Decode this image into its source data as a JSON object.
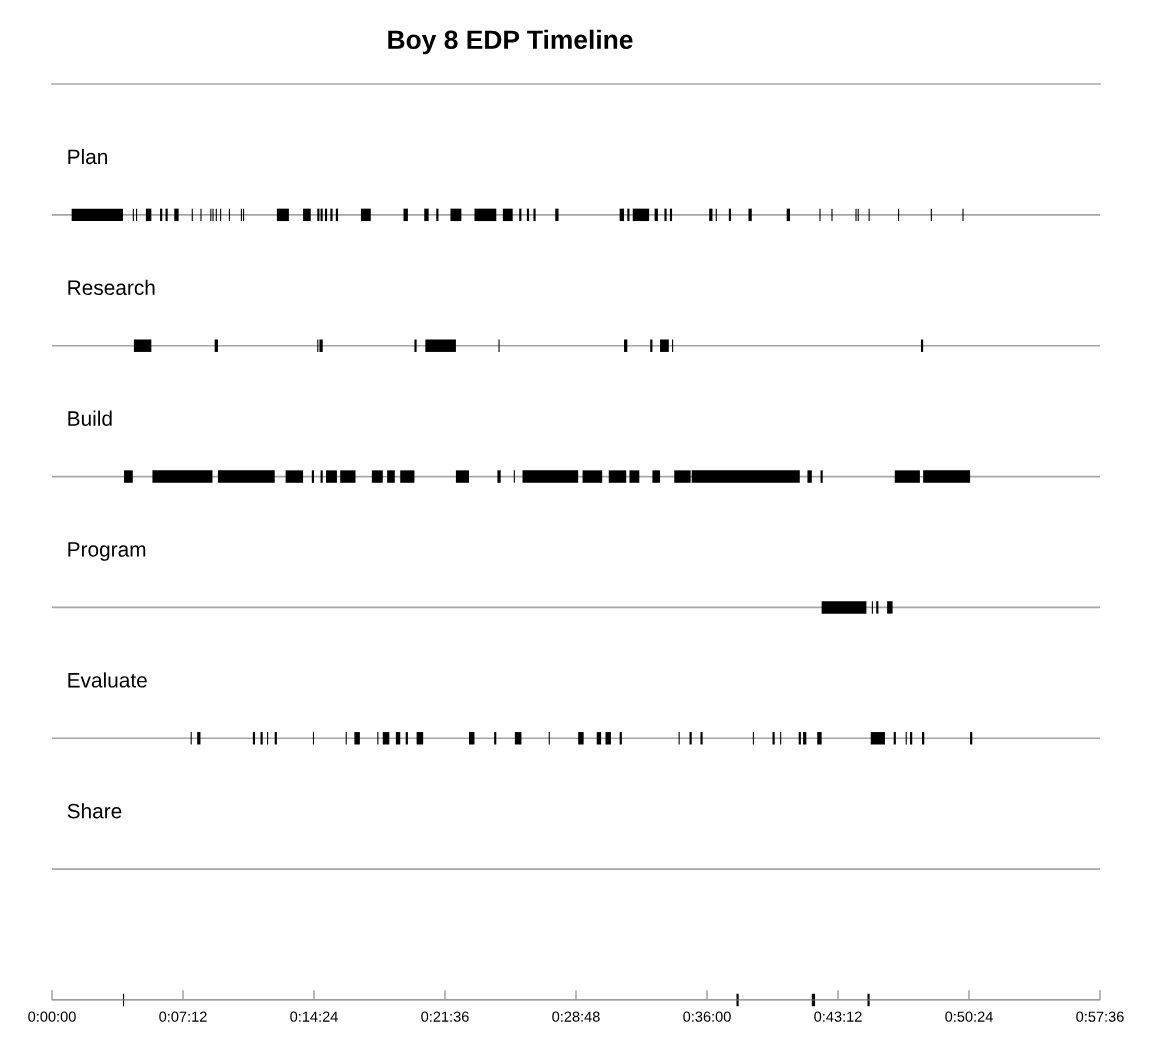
{
  "chart_data": {
    "type": "bar",
    "orientation": "horizontal",
    "title": "Boy 8 EDP Timeline",
    "categories": [
      "Plan",
      "Research",
      "Build",
      "Program",
      "Evaluate",
      "Share",
      null
    ],
    "series": [
      {
        "color": "#000000",
        "base": [
          0.018,
          0.075,
          0.066,
          0.705,
          0.127,
          null,
          0.065
        ],
        "values": [
          0.047,
          0.016,
          0.008,
          0.041,
          0.001,
          null,
          0.001
        ]
      },
      {
        "color": "#000000",
        "base": [
          0.074,
          0.149,
          0.092,
          0.751,
          0.133,
          null,
          0.627
        ],
        "values": [
          0.001,
          0.003,
          0.055,
          0.001,
          0.003,
          null,
          0.002
        ]
      },
      {
        "color": "#000000",
        "base": [
          0.077,
          0.243,
          0.152,
          0.755,
          0.184,
          null,
          0.696
        ],
        "values": [
          0.001,
          0.001,
          0.052,
          0.002,
          0.002,
          null,
          0.003
        ]
      },
      {
        "color": "#000000",
        "base": [
          0.086,
          0.245,
          0.214,
          0.765,
          0.191,
          null,
          0.747
        ],
        "values": [
          0.005,
          0.003,
          0.016,
          0.005,
          0.002,
          null,
          0.002
        ]
      },
      {
        "color": "#000000",
        "base": [
          0.099,
          0.332,
          0.238,
          null,
          0.197,
          null,
          null
        ],
        "values": [
          0.002,
          0.002,
          0.002,
          null,
          0.001,
          null,
          null
        ]
      },
      {
        "color": "#000000",
        "base": [
          0.104,
          0.342,
          0.246,
          null,
          0.204,
          null,
          null
        ],
        "values": [
          0.002,
          0.028,
          0.002,
          null,
          0.002,
          null,
          null
        ]
      },
      {
        "color": "#000000",
        "base": [
          0.112,
          0.409,
          0.251,
          null,
          0.239,
          null,
          null
        ],
        "values": [
          0.004,
          0.001,
          0.01,
          null,
          0.001,
          null,
          null
        ]
      },
      {
        "color": "#000000",
        "base": [
          0.128,
          0.524,
          0.264,
          null,
          0.269,
          null,
          null
        ],
        "values": [
          0.001,
          0.003,
          0.014,
          null,
          0.001,
          null,
          null
        ]
      },
      {
        "color": "#000000",
        "base": [
          0.136,
          0.548,
          0.293,
          null,
          0.277,
          null,
          null
        ],
        "values": [
          0.001,
          0.002,
          0.01,
          null,
          0.005,
          null,
          null
        ]
      },
      {
        "color": "#000000",
        "base": [
          0.145,
          0.557,
          0.307,
          null,
          0.298,
          null,
          null
        ],
        "values": [
          0.001,
          0.008,
          0.007,
          null,
          0.001,
          null,
          null
        ]
      },
      {
        "color": "#000000",
        "base": [
          0.147,
          0.568,
          0.319,
          null,
          0.303,
          null,
          null
        ],
        "values": [
          0.001,
          0.001,
          0.013,
          null,
          0.006,
          null,
          null
        ]
      },
      {
        "color": "#000000",
        "base": [
          0.15,
          0.796,
          0.37,
          null,
          0.315,
          null,
          null
        ],
        "values": [
          0.001,
          0.002,
          0.012,
          null,
          0.004,
          null,
          null
        ]
      },
      {
        "color": "#000000",
        "base": [
          0.154,
          null,
          0.408,
          null,
          0.324,
          null,
          null
        ],
        "values": [
          0.001,
          null,
          0.003,
          null,
          0.002,
          null,
          null
        ]
      },
      {
        "color": "#000000",
        "base": [
          0.162,
          null,
          0.423,
          null,
          0.334,
          null,
          null
        ],
        "values": [
          0.001,
          null,
          0.001,
          null,
          0.006,
          null,
          null
        ]
      },
      {
        "color": "#000000",
        "base": [
          0.173,
          null,
          0.431,
          null,
          0.382,
          null,
          null
        ],
        "values": [
          0.001,
          null,
          0.051,
          null,
          0.005,
          null,
          null
        ]
      },
      {
        "color": "#000000",
        "base": [
          0.175,
          null,
          0.486,
          null,
          0.405,
          null,
          null
        ],
        "values": [
          0.001,
          null,
          0.018,
          null,
          0.002,
          null,
          null
        ]
      },
      {
        "color": "#000000",
        "base": [
          0.206,
          null,
          0.51,
          null,
          0.424,
          null,
          null
        ],
        "values": [
          0.011,
          null,
          0.016,
          null,
          0.006,
          null,
          null
        ]
      },
      {
        "color": "#000000",
        "base": [
          0.23,
          null,
          0.529,
          null,
          0.455,
          null,
          null
        ],
        "values": [
          0.007,
          null,
          0.009,
          null,
          0.001,
          null,
          null
        ]
      },
      {
        "color": "#000000",
        "base": [
          0.243,
          null,
          0.55,
          null,
          0.482,
          null,
          null
        ],
        "values": [
          0.002,
          null,
          0.007,
          null,
          0.005,
          null,
          null
        ]
      },
      {
        "color": "#000000",
        "base": [
          0.246,
          null,
          0.57,
          null,
          0.499,
          null,
          null
        ],
        "values": [
          0.002,
          null,
          0.015,
          null,
          0.004,
          null,
          null
        ]
      },
      {
        "color": "#000000",
        "base": [
          0.25,
          null,
          0.586,
          null,
          0.507,
          null,
          null
        ],
        "values": [
          0.002,
          null,
          0.099,
          null,
          0.005,
          null,
          null
        ]
      },
      {
        "color": "#000000",
        "base": [
          0.255,
          null,
          0.692,
          null,
          0.52,
          null,
          null
        ],
        "values": [
          0.002,
          null,
          0.004,
          null,
          0.002,
          null,
          null
        ]
      },
      {
        "color": "#000000",
        "base": [
          0.26,
          null,
          0.704,
          null,
          0.574,
          null,
          null
        ],
        "values": [
          0.002,
          null,
          0.002,
          null,
          0.001,
          null,
          null
        ]
      },
      {
        "color": "#000000",
        "base": [
          0.283,
          null,
          0.772,
          null,
          0.584,
          null,
          null
        ],
        "values": [
          0.009,
          null,
          0.023,
          null,
          0.002,
          null,
          null
        ]
      },
      {
        "color": "#000000",
        "base": [
          0.322,
          null,
          0.798,
          null,
          0.594,
          null,
          null
        ],
        "values": [
          0.004,
          null,
          0.043,
          null,
          0.002,
          null,
          null
        ]
      },
      {
        "color": "#000000",
        "base": [
          0.341,
          null,
          null,
          null,
          0.642,
          null,
          null
        ],
        "values": [
          0.004,
          null,
          null,
          null,
          0.001,
          null,
          null
        ]
      },
      {
        "color": "#000000",
        "base": [
          0.352,
          null,
          null,
          null,
          0.66,
          null,
          null
        ],
        "values": [
          0.002,
          null,
          null,
          null,
          0.002,
          null,
          null
        ]
      },
      {
        "color": "#000000",
        "base": [
          0.365,
          null,
          null,
          null,
          0.667,
          null,
          null
        ],
        "values": [
          0.01,
          null,
          null,
          null,
          0.001,
          null,
          null
        ]
      },
      {
        "color": "#000000",
        "base": [
          0.387,
          null,
          null,
          null,
          0.684,
          null,
          null
        ],
        "values": [
          0.02,
          null,
          null,
          null,
          0.002,
          null,
          null
        ]
      },
      {
        "color": "#000000",
        "base": [
          0.413,
          null,
          null,
          null,
          0.688,
          null,
          null
        ],
        "values": [
          0.009,
          null,
          null,
          null,
          0.003,
          null,
          null
        ]
      },
      {
        "color": "#000000",
        "base": [
          0.428,
          null,
          null,
          null,
          0.701,
          null,
          null
        ],
        "values": [
          0.002,
          null,
          null,
          null,
          0.004,
          null,
          null
        ]
      },
      {
        "color": "#000000",
        "base": [
          0.435,
          null,
          null,
          null,
          0.75,
          null,
          null
        ],
        "values": [
          0.002,
          null,
          null,
          null,
          0.013,
          null,
          null
        ]
      },
      {
        "color": "#000000",
        "base": [
          0.441,
          null,
          null,
          null,
          0.771,
          null,
          null
        ],
        "values": [
          0.002,
          null,
          null,
          null,
          0.002,
          null,
          null
        ]
      },
      {
        "color": "#000000",
        "base": [
          0.461,
          null,
          null,
          null,
          0.782,
          null,
          null
        ],
        "values": [
          0.003,
          null,
          null,
          null,
          0.001,
          null,
          null
        ]
      },
      {
        "color": "#000000",
        "base": [
          0.52,
          null,
          null,
          null,
          0.786,
          null,
          null
        ],
        "values": [
          0.004,
          null,
          null,
          null,
          0.002,
          null,
          null
        ]
      },
      {
        "color": "#000000",
        "base": [
          0.527,
          null,
          null,
          null,
          0.797,
          null,
          null
        ],
        "values": [
          0.002,
          null,
          null,
          null,
          0.002,
          null,
          null
        ]
      },
      {
        "color": "#000000",
        "base": [
          0.532,
          null,
          null,
          null,
          0.841,
          null,
          null
        ],
        "values": [
          0.015,
          null,
          null,
          null,
          0.002,
          null,
          null
        ]
      },
      {
        "color": "#000000",
        "base": [
          0.552,
          null,
          null,
          null,
          null,
          null,
          null
        ],
        "values": [
          0.003,
          null,
          null,
          null,
          null,
          null,
          null
        ]
      },
      {
        "color": "#000000",
        "base": [
          0.561,
          null,
          null,
          null,
          null,
          null,
          null
        ],
        "values": [
          0.002,
          null,
          null,
          null,
          null,
          null,
          null
        ]
      },
      {
        "color": "#000000",
        "base": [
          0.566,
          null,
          null,
          null,
          null,
          null,
          null
        ],
        "values": [
          0.002,
          null,
          null,
          null,
          null,
          null,
          null
        ]
      },
      {
        "color": "#000000",
        "base": [
          0.602,
          null,
          null,
          null,
          null,
          null,
          null
        ],
        "values": [
          0.003,
          null,
          null,
          null,
          null,
          null,
          null
        ]
      },
      {
        "color": "#000000",
        "base": [
          0.608,
          null,
          null,
          null,
          null,
          null,
          null
        ],
        "values": [
          0.001,
          null,
          null,
          null,
          null,
          null,
          null
        ]
      },
      {
        "color": "#000000",
        "base": [
          0.62,
          null,
          null,
          null,
          null,
          null,
          null
        ],
        "values": [
          0.002,
          null,
          null,
          null,
          null,
          null,
          null
        ]
      },
      {
        "color": "#000000",
        "base": [
          0.638,
          null,
          null,
          null,
          null,
          null,
          null
        ],
        "values": [
          0.003,
          null,
          null,
          null,
          null,
          null,
          null
        ]
      },
      {
        "color": "#000000",
        "base": [
          0.673,
          null,
          null,
          null,
          null,
          null,
          null
        ],
        "values": [
          0.003,
          null,
          null,
          null,
          null,
          null,
          null
        ]
      },
      {
        "color": "#000000",
        "base": [
          0.703,
          null,
          null,
          null,
          null,
          null,
          null
        ],
        "values": [
          0.001,
          null,
          null,
          null,
          null,
          null,
          null
        ]
      },
      {
        "color": "#000000",
        "base": [
          0.714,
          null,
          null,
          null,
          null,
          null,
          null
        ],
        "values": [
          0.001,
          null,
          null,
          null,
          null,
          null,
          null
        ]
      },
      {
        "color": "#000000",
        "base": [
          0.736,
          null,
          null,
          null,
          null,
          null,
          null
        ],
        "values": [
          0.001,
          null,
          null,
          null,
          null,
          null,
          null
        ]
      },
      {
        "color": "#000000",
        "base": [
          0.738,
          null,
          null,
          null,
          null,
          null,
          null
        ],
        "values": [
          0.001,
          null,
          null,
          null,
          null,
          null,
          null
        ]
      },
      {
        "color": "#000000",
        "base": [
          0.748,
          null,
          null,
          null,
          null,
          null,
          null
        ],
        "values": [
          0.001,
          null,
          null,
          null,
          null,
          null,
          null
        ]
      },
      {
        "color": "#000000",
        "base": [
          0.775,
          null,
          null,
          null,
          null,
          null,
          null
        ],
        "values": [
          0.001,
          null,
          null,
          null,
          null,
          null,
          null
        ]
      },
      {
        "color": "#000000",
        "base": [
          0.805,
          null,
          null,
          null,
          null,
          null,
          null
        ],
        "values": [
          0.001,
          null,
          null,
          null,
          null,
          null,
          null
        ]
      },
      {
        "color": "#000000",
        "base": [
          0.834,
          null,
          null,
          null,
          null,
          null,
          null
        ],
        "values": [
          0.001,
          null,
          null,
          null,
          null,
          null,
          null
        ]
      }
    ],
    "xlim": [
      0,
      0.96
    ],
    "xticks": [
      {
        "value": 0,
        "label": "0:00:00"
      },
      {
        "value": 0.12,
        "label": "0:07:12"
      },
      {
        "value": 0.24,
        "label": "0:14:24"
      },
      {
        "value": 0.36,
        "label": "0:21:36"
      },
      {
        "value": 0.48,
        "label": "0:28:48"
      },
      {
        "value": 0.6,
        "label": "0:36:00"
      },
      {
        "value": 0.72,
        "label": "0:43:12"
      },
      {
        "value": 0.84,
        "label": "0:50:24"
      },
      {
        "value": 0.96,
        "label": "0:57:36"
      }
    ],
    "grid": "y",
    "legend": false
  }
}
